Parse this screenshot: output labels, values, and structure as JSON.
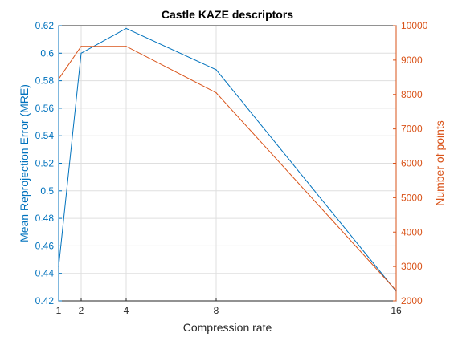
{
  "chart_data": {
    "type": "line",
    "title": "Castle KAZE descriptors",
    "xlabel": "Compression rate",
    "ylabel_left": "Mean Reprojection Error (MRE)",
    "ylabel_right": "Number of points",
    "x": [
      1,
      2,
      4,
      8,
      16
    ],
    "xlim": [
      1,
      16
    ],
    "xticks": [
      "1",
      "2",
      "4",
      "8",
      "16"
    ],
    "ylim_left": [
      0.42,
      0.62
    ],
    "yticks_left": [
      "0.42",
      "0.44",
      "0.46",
      "0.48",
      "0.5",
      "0.52",
      "0.54",
      "0.56",
      "0.58",
      "0.6",
      "0.62"
    ],
    "ylim_right": [
      2000,
      10000
    ],
    "yticks_right": [
      "2000",
      "3000",
      "4000",
      "5000",
      "6000",
      "7000",
      "8000",
      "9000",
      "10000"
    ],
    "grid": true,
    "series": [
      {
        "axis": "left",
        "color": "#0072bd",
        "values": [
          0.445,
          0.6,
          0.618,
          0.588,
          0.427
        ]
      },
      {
        "axis": "right",
        "color": "#d95319",
        "values": [
          8450,
          9400,
          9400,
          8050,
          2300
        ]
      }
    ]
  }
}
